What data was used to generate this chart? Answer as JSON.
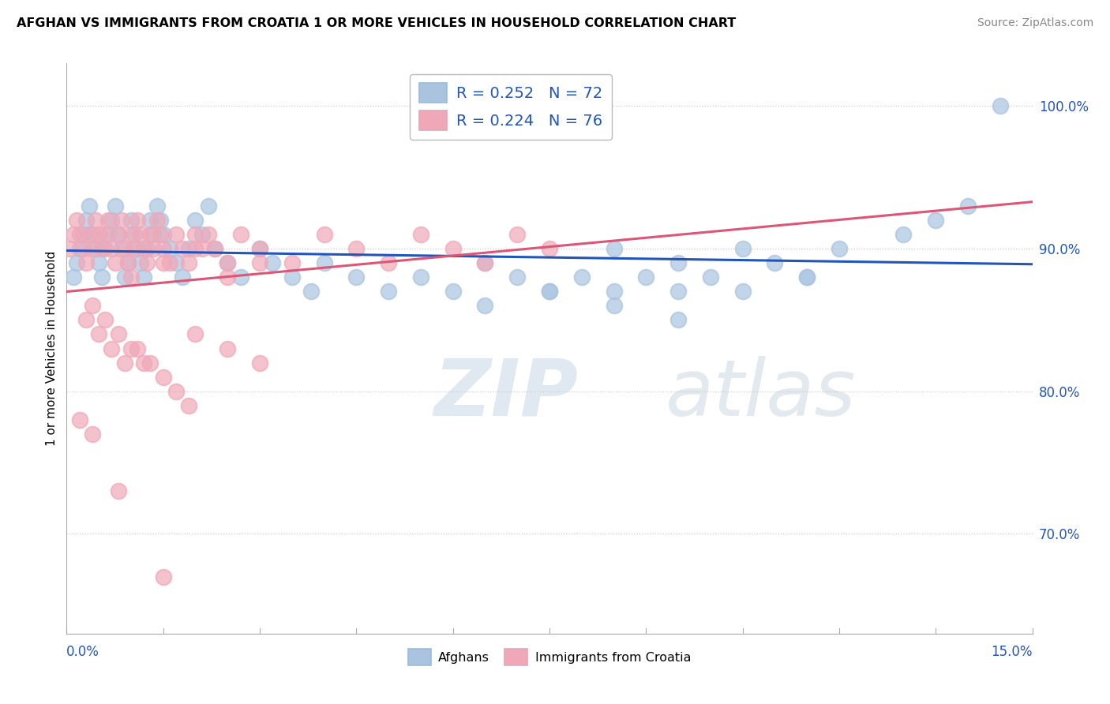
{
  "title": "AFGHAN VS IMMIGRANTS FROM CROATIA 1 OR MORE VEHICLES IN HOUSEHOLD CORRELATION CHART",
  "source": "Source: ZipAtlas.com",
  "ylabel": "1 or more Vehicles in Household",
  "xlim": [
    0.0,
    15.0
  ],
  "ylim": [
    63.0,
    103.0
  ],
  "ytick_labels": [
    "70.0%",
    "80.0%",
    "90.0%",
    "100.0%"
  ],
  "ytick_values": [
    70.0,
    80.0,
    90.0,
    100.0
  ],
  "legend_afghan": "R = 0.252   N = 72",
  "legend_croatia": "R = 0.224   N = 76",
  "legend_label_afghan": "Afghans",
  "legend_label_croatia": "Immigrants from Croatia",
  "afghan_color": "#aac4e0",
  "croatia_color": "#f0a8b8",
  "afghan_line_color": "#2255bb",
  "croatia_line_color": "#dd5577",
  "afghan_x": [
    0.1,
    0.15,
    0.2,
    0.25,
    0.3,
    0.35,
    0.4,
    0.45,
    0.5,
    0.55,
    0.6,
    0.65,
    0.7,
    0.75,
    0.8,
    0.85,
    0.9,
    0.95,
    1.0,
    1.05,
    1.1,
    1.15,
    1.2,
    1.25,
    1.3,
    1.35,
    1.4,
    1.45,
    1.5,
    1.6,
    1.7,
    1.8,
    1.9,
    2.0,
    2.1,
    2.2,
    2.3,
    2.5,
    2.7,
    3.0,
    3.2,
    3.5,
    3.8,
    4.0,
    4.5,
    5.0,
    5.5,
    6.0,
    6.5,
    7.0,
    7.5,
    8.0,
    8.5,
    9.0,
    9.5,
    10.0,
    10.5,
    11.0,
    11.5,
    12.0,
    13.0,
    13.5,
    14.0,
    14.5,
    8.5,
    9.5,
    10.5,
    11.5,
    6.5,
    7.5,
    8.5,
    9.5
  ],
  "afghan_y": [
    88,
    89,
    90,
    91,
    92,
    93,
    91,
    90,
    89,
    88,
    90,
    91,
    92,
    93,
    91,
    90,
    88,
    89,
    92,
    91,
    90,
    89,
    88,
    90,
    92,
    91,
    93,
    92,
    91,
    90,
    89,
    88,
    90,
    92,
    91,
    93,
    90,
    89,
    88,
    90,
    89,
    88,
    87,
    89,
    88,
    87,
    88,
    87,
    89,
    88,
    87,
    88,
    87,
    88,
    87,
    88,
    87,
    89,
    88,
    90,
    91,
    92,
    93,
    100,
    90,
    89,
    90,
    88,
    86,
    87,
    86,
    85
  ],
  "croatia_x": [
    0.05,
    0.1,
    0.15,
    0.2,
    0.25,
    0.3,
    0.35,
    0.4,
    0.45,
    0.5,
    0.55,
    0.6,
    0.65,
    0.7,
    0.75,
    0.8,
    0.85,
    0.9,
    0.95,
    1.0,
    1.05,
    1.1,
    1.15,
    1.2,
    1.25,
    1.3,
    1.35,
    1.4,
    1.45,
    1.5,
    1.6,
    1.7,
    1.8,
    1.9,
    2.0,
    2.1,
    2.2,
    2.3,
    2.5,
    2.7,
    3.0,
    3.5,
    4.0,
    4.5,
    5.0,
    5.5,
    6.0,
    6.5,
    7.0,
    7.5,
    1.0,
    1.5,
    2.0,
    2.5,
    3.0,
    0.3,
    0.5,
    0.7,
    0.9,
    1.1,
    1.3,
    1.5,
    1.7,
    1.9,
    0.4,
    0.6,
    0.8,
    1.0,
    1.2,
    2.0,
    2.5,
    3.0,
    0.2,
    0.4,
    0.8,
    1.5
  ],
  "croatia_y": [
    90,
    91,
    92,
    91,
    90,
    89,
    91,
    90,
    92,
    91,
    90,
    91,
    92,
    90,
    89,
    91,
    92,
    90,
    89,
    91,
    90,
    92,
    91,
    90,
    89,
    91,
    90,
    92,
    91,
    90,
    89,
    91,
    90,
    89,
    91,
    90,
    91,
    90,
    89,
    91,
    90,
    89,
    91,
    90,
    89,
    91,
    90,
    89,
    91,
    90,
    88,
    89,
    90,
    88,
    89,
    85,
    84,
    83,
    82,
    83,
    82,
    81,
    80,
    79,
    86,
    85,
    84,
    83,
    82,
    84,
    83,
    82,
    78,
    77,
    73,
    67
  ]
}
